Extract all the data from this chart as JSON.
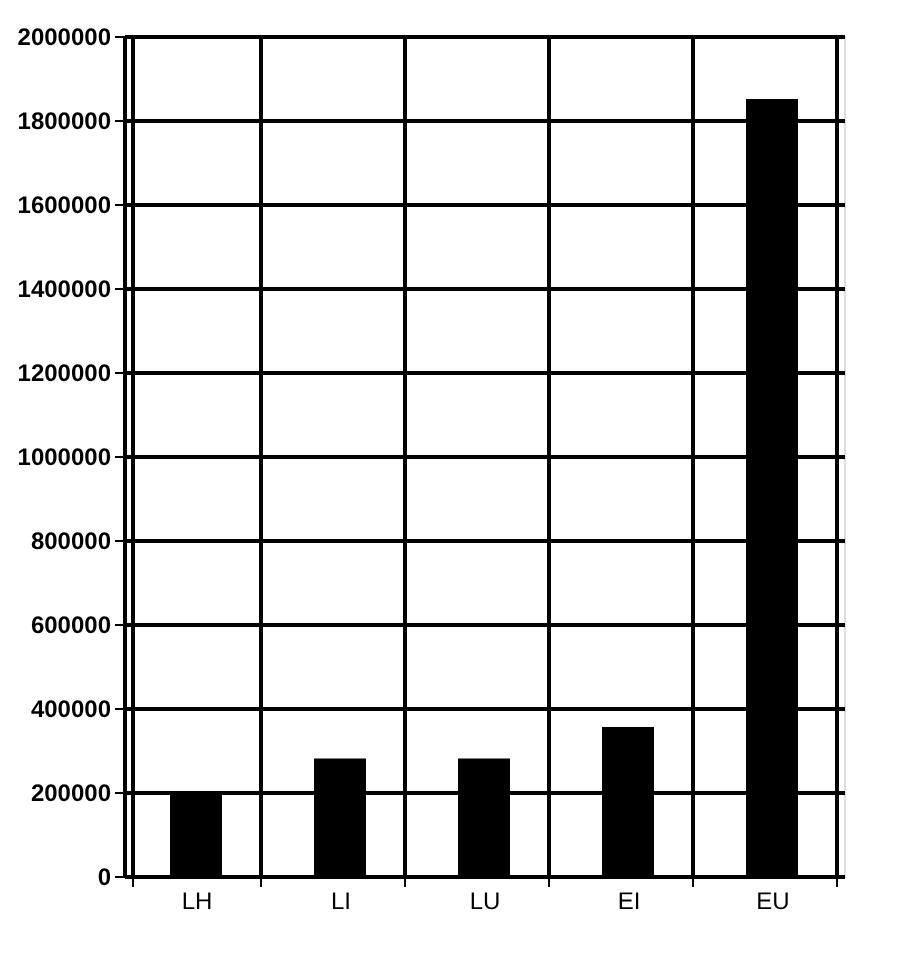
{
  "chart_data": {
    "type": "bar",
    "categories": [
      "LH",
      "LI",
      "LU",
      "EI",
      "EU"
    ],
    "values": [
      200000,
      280000,
      280000,
      355000,
      1850000
    ],
    "color": "#000000",
    "ylim": [
      0,
      2000000
    ],
    "yticks": [
      0,
      200000,
      400000,
      600000,
      800000,
      1000000,
      1200000,
      1400000,
      1600000,
      1800000,
      2000000
    ],
    "grid": true
  }
}
